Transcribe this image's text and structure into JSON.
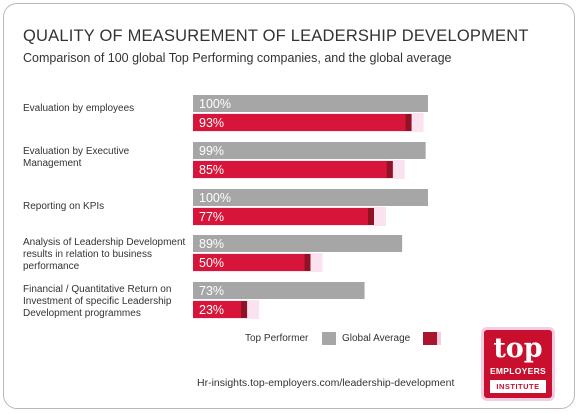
{
  "chart_data": {
    "type": "bar",
    "orientation": "horizontal",
    "title": "QUALITY OF MEASUREMENT OF LEADERSHIP DEVELOPMENT",
    "subtitle": "Comparison of 100 global Top Performing companies, and the global average",
    "categories": [
      "Evaluation by employees",
      "Evaluation by Executive Management",
      "Reporting on KPIs",
      "Analysis of Leadership Development results in relation to business performance",
      "Financial / Quantitative Return on Investment of specific Leadership Development programmes"
    ],
    "series": [
      {
        "name": "Top Performer",
        "values": [
          100,
          99,
          100,
          89,
          73
        ],
        "labels": [
          "100%",
          "99%",
          "100%",
          "89%",
          "73%"
        ],
        "color": "#a6a6a6"
      },
      {
        "name": "Global Average",
        "values": [
          93,
          85,
          77,
          50,
          23
        ],
        "labels": [
          "93%",
          "85%",
          "77%",
          "50%",
          "23%"
        ],
        "color": "#d7153a"
      }
    ],
    "xlim": [
      0,
      100
    ],
    "legend_position": "bottom-right",
    "grid": false
  },
  "legend": {
    "top_performer": "Top Performer",
    "global_average": "Global Average"
  },
  "footer": {
    "url": "Hr-insights.top-employers.com/leadership-development"
  },
  "logo": {
    "top": "top",
    "employers": "EMPLOYERS",
    "institute": "INSTITUTE"
  }
}
